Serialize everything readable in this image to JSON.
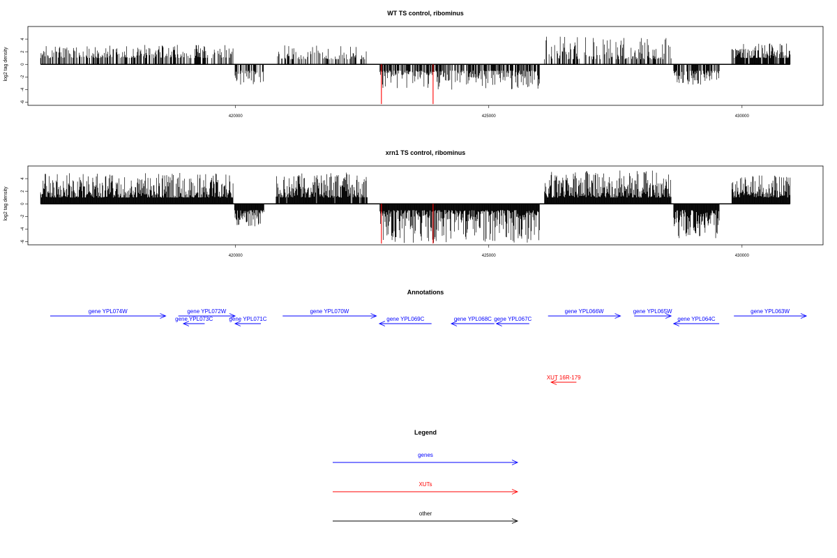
{
  "chart_data": [
    {
      "type": "bar",
      "title": "WT TS control, ribominus",
      "ylabel": "log2 tag density",
      "ylim": [
        -6.5,
        6
      ],
      "yticks": [
        -6,
        -4,
        -2,
        0,
        2,
        4
      ],
      "xlim": [
        415900,
        431600
      ],
      "xticks": [
        420000,
        425000,
        430000
      ],
      "xtick_labels": [
        "420000",
        "425000",
        "430000"
      ],
      "bar_color": "#000000",
      "highlight_color": "#ff0000",
      "segments": [
        {
          "from": 416150,
          "to": 419950,
          "strand": "+",
          "sign": 1,
          "density": 0.55,
          "min": 1.0,
          "max": 3.1
        },
        {
          "from": 419980,
          "to": 420560,
          "strand": "-",
          "sign": -1,
          "density": 0.6,
          "min": 1.0,
          "max": 3.5
        },
        {
          "from": 420800,
          "to": 422600,
          "strand": "+",
          "sign": 1,
          "density": 0.45,
          "min": 0.8,
          "max": 3.0
        },
        {
          "from": 422850,
          "to": 426000,
          "strand": "-",
          "sign": -1,
          "density": 0.7,
          "min": 1.0,
          "max": 4.0
        },
        {
          "from": 426100,
          "to": 428600,
          "strand": "+",
          "sign": 1,
          "density": 0.45,
          "min": 0.8,
          "max": 4.4
        },
        {
          "from": 428650,
          "to": 429550,
          "strand": "-",
          "sign": -1,
          "density": 0.75,
          "min": 1.0,
          "max": 3.4
        },
        {
          "from": 429800,
          "to": 430950,
          "strand": "+",
          "sign": 1,
          "density": 0.85,
          "min": 1.0,
          "max": 3.4
        }
      ],
      "highlights": [
        {
          "x": 422880,
          "value": -6.3
        },
        {
          "x": 423900,
          "value": -6.3
        }
      ]
    },
    {
      "type": "bar",
      "title": "xrn1 TS control, ribominus",
      "ylabel": "log2 tag density",
      "ylim": [
        -6.5,
        6
      ],
      "yticks": [
        -6,
        -4,
        -2,
        0,
        2,
        4
      ],
      "xlim": [
        415900,
        431600
      ],
      "xticks": [
        420000,
        425000,
        430000
      ],
      "xtick_labels": [
        "420000",
        "425000",
        "430000"
      ],
      "bar_color": "#000000",
      "highlight_color": "#ff0000",
      "segments": [
        {
          "from": 416150,
          "to": 419950,
          "strand": "+",
          "sign": 1,
          "density": 1.0,
          "min": 1.0,
          "max": 4.9
        },
        {
          "from": 419980,
          "to": 420560,
          "strand": "-",
          "sign": -1,
          "density": 1.0,
          "min": 1.0,
          "max": 3.6
        },
        {
          "from": 420800,
          "to": 422600,
          "strand": "+",
          "sign": 1,
          "density": 0.95,
          "min": 1.0,
          "max": 5.0
        },
        {
          "from": 422850,
          "to": 426000,
          "strand": "-",
          "sign": -1,
          "density": 1.0,
          "min": 1.0,
          "max": 6.2
        },
        {
          "from": 426100,
          "to": 428600,
          "strand": "+",
          "sign": 1,
          "density": 1.0,
          "min": 1.0,
          "max": 5.3
        },
        {
          "from": 428650,
          "to": 429550,
          "strand": "-",
          "sign": -1,
          "density": 1.0,
          "min": 1.0,
          "max": 5.6
        },
        {
          "from": 429800,
          "to": 430950,
          "strand": "+",
          "sign": 1,
          "density": 1.0,
          "min": 1.0,
          "max": 4.5
        }
      ],
      "highlights": [
        {
          "x": 422880,
          "value": -6.3
        },
        {
          "x": 423900,
          "value": -6.3
        }
      ]
    }
  ],
  "annotations": {
    "title": "Annotations",
    "features": [
      {
        "label": "gene YPL074W",
        "start": 416340,
        "end": 418620,
        "strand": "+",
        "color": "#0000ff",
        "row": 0
      },
      {
        "label": "gene YPL073C",
        "start": 418970,
        "end": 419390,
        "strand": "-",
        "color": "#0000ff",
        "row": 1
      },
      {
        "label": "gene YPL072W",
        "start": 418870,
        "end": 419990,
        "strand": "+",
        "color": "#0000ff",
        "row": 0
      },
      {
        "label": "gene YPL071C",
        "start": 419990,
        "end": 420500,
        "strand": "-",
        "color": "#0000ff",
        "row": 1
      },
      {
        "label": "gene YPL070W",
        "start": 420930,
        "end": 422780,
        "strand": "+",
        "color": "#0000ff",
        "row": 0
      },
      {
        "label": "gene YPL069C",
        "start": 422840,
        "end": 423870,
        "strand": "-",
        "color": "#0000ff",
        "row": 1
      },
      {
        "label": "gene YPL068C",
        "start": 424260,
        "end": 425110,
        "strand": "-",
        "color": "#0000ff",
        "row": 1
      },
      {
        "label": "gene YPL067C",
        "start": 425150,
        "end": 425800,
        "strand": "-",
        "color": "#0000ff",
        "row": 1
      },
      {
        "label": "gene YPL066W",
        "start": 426170,
        "end": 427600,
        "strand": "+",
        "color": "#0000ff",
        "row": 0
      },
      {
        "label": "gene YPL065W",
        "start": 427870,
        "end": 428600,
        "strand": "+",
        "color": "#0000ff",
        "row": 0
      },
      {
        "label": "gene YPL064C",
        "start": 428650,
        "end": 429550,
        "strand": "-",
        "color": "#0000ff",
        "row": 1
      },
      {
        "label": "gene YPL063W",
        "start": 429840,
        "end": 431270,
        "strand": "+",
        "color": "#0000ff",
        "row": 0
      },
      {
        "label": "XUT 16R-179",
        "start": 426230,
        "end": 426730,
        "strand": "-",
        "color": "#ff0000",
        "row": 2
      }
    ]
  },
  "legend": {
    "title": "Legend",
    "items": [
      {
        "label": "genes",
        "color": "#0000ff"
      },
      {
        "label": "XUTs",
        "color": "#ff0000"
      },
      {
        "label": "other",
        "color": "#000000"
      }
    ]
  }
}
